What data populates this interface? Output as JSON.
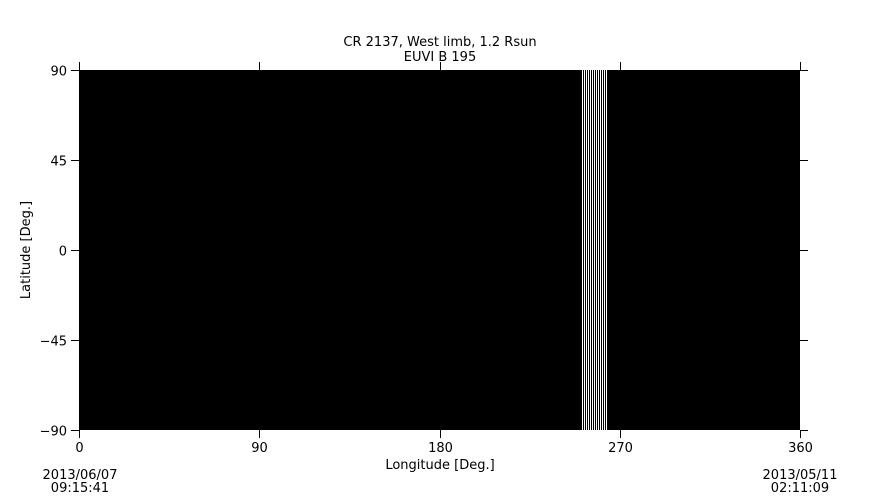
{
  "chart_data": {
    "type": "heatmap",
    "title": "CR 2137, West limb, 1.2 Rsun",
    "subtitle": "EUVI B 195",
    "xlabel": "Longitude [Deg.]",
    "ylabel": "Latitude [Deg.]",
    "xlim": [
      0,
      360
    ],
    "ylim": [
      -90,
      90
    ],
    "xticks": [
      0,
      90,
      180,
      270,
      360
    ],
    "yticks": [
      90,
      45,
      0,
      -45,
      -90
    ],
    "background_color": "#000000",
    "stripe_color": "#ffffff",
    "stripe_longitudes": [
      251,
      252,
      253,
      254,
      255,
      256,
      257,
      258,
      259,
      260,
      261,
      262,
      263
    ],
    "left_date": "2013/06/07",
    "left_time": "09:15:41",
    "right_date": "2013/05/11",
    "right_time": "02:11:09"
  }
}
